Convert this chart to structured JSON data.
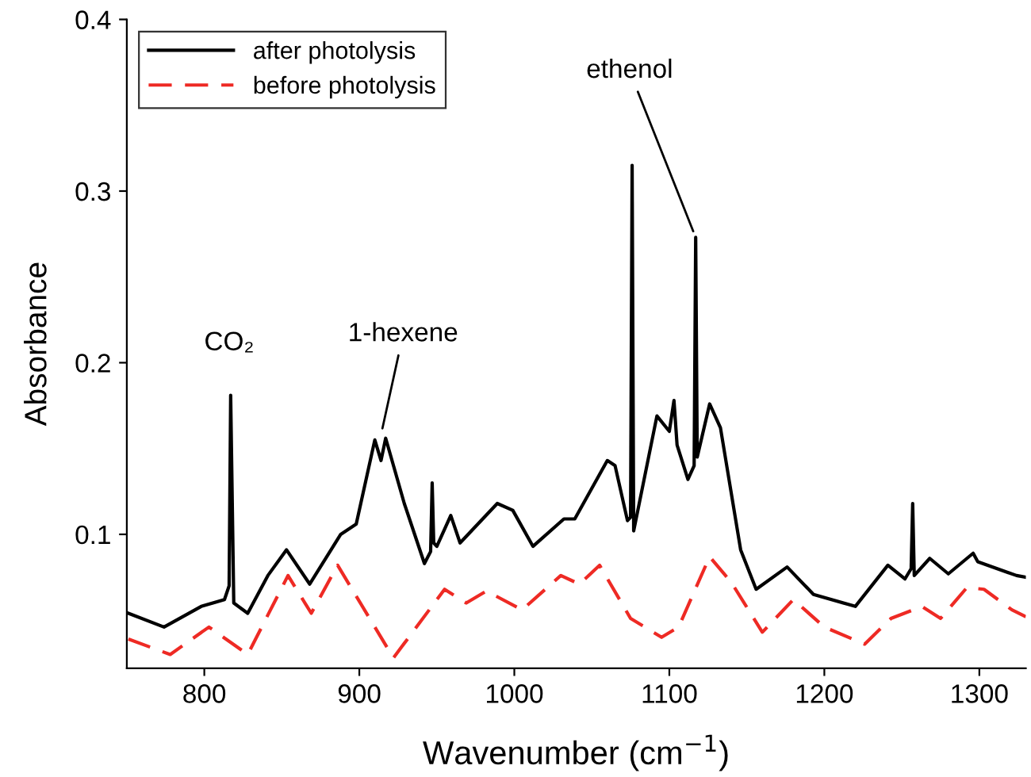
{
  "chart_data": {
    "type": "line",
    "xlabel": "Wavenumber (cm$^{−1}$)",
    "ylabel": "Absorbance",
    "xlim": [
      750,
      1330
    ],
    "ylim": [
      0.022,
      0.4
    ],
    "xticks": [
      800,
      900,
      1000,
      1100,
      1200,
      1300
    ],
    "yticks": [
      0.1,
      0.2,
      0.3,
      0.4
    ],
    "grid": false,
    "legend": "top left",
    "marker": "none",
    "series": [
      {
        "name": "after photolysis",
        "color": "#000000",
        "line_style": "solid",
        "x": [
          751,
          774,
          798,
          813,
          816,
          817,
          819,
          828,
          841,
          853,
          868,
          888,
          898,
          910,
          914,
          917,
          929,
          942,
          946,
          947,
          948,
          950,
          959,
          965,
          989,
          999,
          1012,
          1032,
          1039,
          1060,
          1065,
          1073,
          1075,
          1076,
          1077,
          1092,
          1100,
          1103,
          1105,
          1112,
          1116,
          1117,
          1118,
          1126,
          1133,
          1146,
          1156,
          1176,
          1193,
          1220,
          1241,
          1252,
          1256,
          1257,
          1258,
          1268,
          1280,
          1296,
          1299,
          1324,
          1330
        ],
        "values": [
          0.054,
          0.046,
          0.058,
          0.062,
          0.07,
          0.181,
          0.06,
          0.054,
          0.076,
          0.091,
          0.071,
          0.1,
          0.106,
          0.155,
          0.143,
          0.156,
          0.118,
          0.083,
          0.09,
          0.13,
          0.095,
          0.093,
          0.111,
          0.095,
          0.118,
          0.114,
          0.093,
          0.109,
          0.109,
          0.143,
          0.14,
          0.108,
          0.11,
          0.315,
          0.102,
          0.169,
          0.16,
          0.178,
          0.152,
          0.132,
          0.14,
          0.273,
          0.145,
          0.176,
          0.162,
          0.091,
          0.068,
          0.081,
          0.065,
          0.058,
          0.082,
          0.074,
          0.08,
          0.118,
          0.076,
          0.086,
          0.077,
          0.089,
          0.084,
          0.076,
          0.075
        ]
      },
      {
        "name": "before photolysis",
        "color": "#ee2a24",
        "line_style": "dashed",
        "x": [
          751,
          778,
          803,
          828,
          854,
          869,
          886,
          922,
          955,
          969,
          982,
          1005,
          1030,
          1042,
          1055,
          1075,
          1095,
          1106,
          1126,
          1140,
          1160,
          1180,
          1200,
          1226,
          1243,
          1263,
          1275,
          1292,
          1303,
          1321,
          1330
        ],
        "values": [
          0.039,
          0.03,
          0.046,
          0.03,
          0.076,
          0.054,
          0.082,
          0.028,
          0.068,
          0.06,
          0.067,
          0.056,
          0.076,
          0.071,
          0.082,
          0.051,
          0.04,
          0.046,
          0.087,
          0.072,
          0.043,
          0.062,
          0.046,
          0.036,
          0.051,
          0.058,
          0.051,
          0.069,
          0.068,
          0.056,
          0.052
        ]
      }
    ],
    "annotations": [
      {
        "text": "CO₂",
        "x": 816,
        "y": 0.181
      },
      {
        "text": "1-hexene",
        "x": 914,
        "y": 0.158
      },
      {
        "text": "ethenol",
        "x": 1117,
        "y": 0.273
      }
    ]
  }
}
